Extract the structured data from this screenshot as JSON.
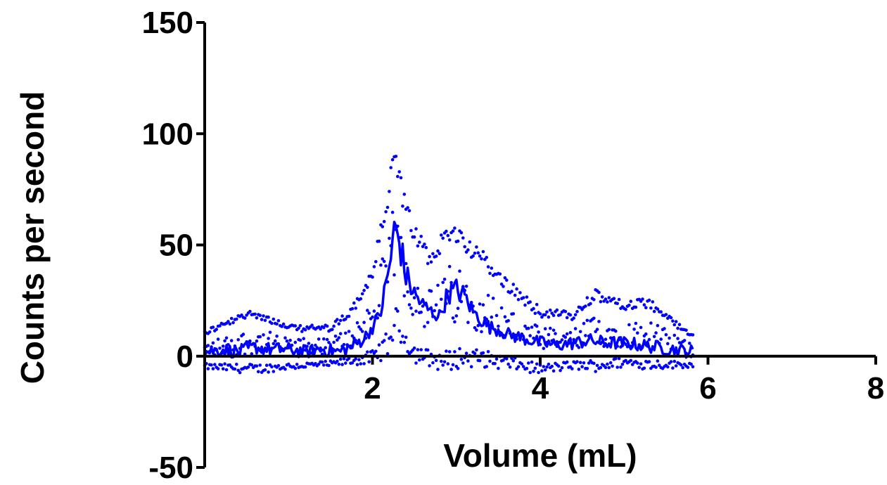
{
  "chart_data": {
    "type": "scatter",
    "xlabel": "Volume (mL)",
    "ylabel": "Counts per second",
    "xlim": [
      0,
      8
    ],
    "ylim": [
      -50,
      150
    ],
    "x_ticks": [
      "2",
      "4",
      "6",
      "8"
    ],
    "y_ticks": [
      "-50",
      "0",
      "50",
      "100",
      "150"
    ],
    "grid": false,
    "legend": "none",
    "colors": {
      "series": "#0000ff",
      "axis": "#000000"
    },
    "series": [
      {
        "style": "scatter-points",
        "x_range": [
          0.0,
          5.82
        ],
        "x_step": 0.02,
        "envelope": [
          {
            "x": 0.0,
            "lo": -6,
            "hi": 12
          },
          {
            "x": 0.6,
            "lo": -8,
            "hi": 22
          },
          {
            "x": 1.0,
            "lo": -6,
            "hi": 14
          },
          {
            "x": 1.5,
            "lo": -5,
            "hi": 14
          },
          {
            "x": 1.75,
            "lo": -4,
            "hi": 22
          },
          {
            "x": 2.0,
            "lo": -4,
            "hi": 40
          },
          {
            "x": 2.2,
            "lo": 0,
            "hi": 80
          },
          {
            "x": 2.27,
            "lo": 10,
            "hi": 98
          },
          {
            "x": 2.35,
            "lo": 5,
            "hi": 78
          },
          {
            "x": 2.5,
            "lo": -3,
            "hi": 60
          },
          {
            "x": 2.7,
            "lo": -5,
            "hi": 45
          },
          {
            "x": 2.9,
            "lo": -8,
            "hi": 63
          },
          {
            "x": 3.05,
            "lo": -5,
            "hi": 58
          },
          {
            "x": 3.3,
            "lo": -5,
            "hi": 48
          },
          {
            "x": 3.6,
            "lo": -6,
            "hi": 35
          },
          {
            "x": 4.0,
            "lo": -8,
            "hi": 22
          },
          {
            "x": 4.4,
            "lo": -6,
            "hi": 20
          },
          {
            "x": 4.65,
            "lo": -7,
            "hi": 30
          },
          {
            "x": 5.0,
            "lo": -5,
            "hi": 25
          },
          {
            "x": 5.3,
            "lo": -6,
            "hi": 26
          },
          {
            "x": 5.82,
            "lo": -5,
            "hi": 10
          }
        ]
      },
      {
        "style": "line",
        "points": [
          [
            0.0,
            2
          ],
          [
            0.2,
            3
          ],
          [
            0.4,
            2
          ],
          [
            0.6,
            4
          ],
          [
            0.8,
            3
          ],
          [
            1.0,
            3
          ],
          [
            1.2,
            2
          ],
          [
            1.4,
            3
          ],
          [
            1.6,
            2
          ],
          [
            1.75,
            4
          ],
          [
            1.9,
            8
          ],
          [
            2.0,
            13
          ],
          [
            2.1,
            20
          ],
          [
            2.2,
            40
          ],
          [
            2.27,
            58
          ],
          [
            2.33,
            50
          ],
          [
            2.4,
            36
          ],
          [
            2.5,
            28
          ],
          [
            2.6,
            23
          ],
          [
            2.7,
            20
          ],
          [
            2.8,
            18
          ],
          [
            2.9,
            28
          ],
          [
            3.0,
            30
          ],
          [
            3.1,
            27
          ],
          [
            3.2,
            20
          ],
          [
            3.3,
            16
          ],
          [
            3.4,
            13
          ],
          [
            3.5,
            12
          ],
          [
            3.6,
            10
          ],
          [
            3.8,
            8
          ],
          [
            4.0,
            6
          ],
          [
            4.2,
            5
          ],
          [
            4.4,
            6
          ],
          [
            4.6,
            7
          ],
          [
            4.8,
            6
          ],
          [
            5.0,
            6
          ],
          [
            5.2,
            5
          ],
          [
            5.4,
            4
          ],
          [
            5.6,
            3
          ],
          [
            5.82,
            2
          ]
        ]
      }
    ]
  }
}
